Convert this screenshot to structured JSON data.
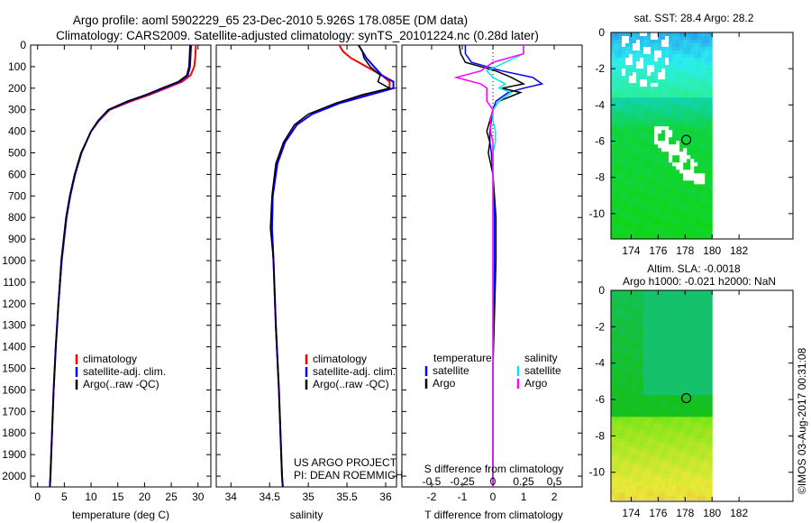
{
  "title": {
    "line1": "Argo profile: aoml 5902229_65 23-Dec-2010 5.926S 178.085E (DM data)",
    "line2": "Climatology: CARS2009. Satellite-adjusted climatology: synTS_20101224.nc (0.28d later)"
  },
  "colors": {
    "clim": "#ff0000",
    "sat": "#0000ff",
    "argo": "#000000",
    "sal_sat": "#00e5ee",
    "sal_argo": "#ff00ff"
  },
  "chart_data": [
    {
      "type": "line",
      "xlabel": "temperature (deg C)",
      "xlim": [
        -1.3,
        32.4
      ],
      "ylim": [
        2050,
        0
      ],
      "xticks": [
        "0",
        "5",
        "10",
        "15",
        "20",
        "25",
        "30"
      ],
      "xtick_values": [
        0,
        5,
        10,
        15,
        20,
        25,
        30
      ],
      "yticks": [
        "0",
        "100",
        "200",
        "300",
        "400",
        "500",
        "600",
        "700",
        "800",
        "900",
        "1000",
        "1100",
        "1200",
        "1300",
        "1400",
        "1500",
        "1600",
        "1700",
        "1800",
        "1900",
        "2000"
      ],
      "legend": [
        "climatology",
        "satellite-adj. clim.",
        "Argo(..raw -QC)"
      ],
      "depth": [
        0,
        50,
        100,
        140,
        170,
        200,
        230,
        260,
        300,
        350,
        400,
        500,
        600,
        700,
        800,
        1000,
        1200,
        1400,
        1600,
        1800,
        2000,
        2050
      ],
      "series": [
        {
          "name": "climatology",
          "values": [
            29.6,
            29.5,
            29.3,
            28.6,
            27,
            24,
            21,
            17.5,
            13.5,
            11.5,
            10,
            8.2,
            7,
            6.1,
            5.4,
            4.5,
            3.9,
            3.4,
            3,
            2.7,
            2.4,
            2.3
          ]
        },
        {
          "name": "satellite-adj. clim.",
          "values": [
            28.7,
            28.6,
            28.5,
            28.1,
            26.5,
            23.5,
            20.5,
            17,
            13.3,
            11.4,
            10,
            8.2,
            7,
            6.1,
            5.4,
            4.5,
            3.9,
            3.4,
            3,
            2.7,
            2.4,
            2.3
          ]
        },
        {
          "name": "Argo(..raw -QC)",
          "values": [
            28.5,
            28.4,
            28.3,
            27.9,
            26.3,
            23.2,
            20.3,
            16.8,
            13.2,
            11.3,
            10,
            8.1,
            6.9,
            6,
            5.3,
            4.4,
            3.9,
            3.4,
            3,
            2.7,
            2.4,
            2.3
          ]
        }
      ]
    },
    {
      "type": "line",
      "xlabel": "salinity",
      "xlim": [
        33.81,
        36.14
      ],
      "ylim": [
        2050,
        0
      ],
      "xticks": [
        "34",
        "34.5",
        "35",
        "35.5",
        "36"
      ],
      "xtick_values": [
        34,
        34.5,
        35,
        35.5,
        36
      ],
      "legend": [
        "climatology",
        "satellite-adj. clim.",
        "Argo(..raw -QC)"
      ],
      "annotation": [
        "US ARGO PROJECT",
        "PI: DEAN ROEMMICH"
      ],
      "depth": [
        0,
        30,
        60,
        100,
        140,
        170,
        200,
        230,
        270,
        320,
        370,
        450,
        550,
        700,
        850,
        1000,
        1300,
        1600,
        2000,
        2050
      ],
      "series": [
        {
          "name": "climatology",
          "values": [
            35.4,
            35.45,
            35.55,
            35.75,
            35.95,
            36.05,
            36.05,
            35.75,
            35.4,
            35.05,
            34.85,
            34.7,
            34.6,
            34.54,
            34.53,
            34.55,
            34.58,
            34.62,
            34.66,
            34.67
          ]
        },
        {
          "name": "satellite-adj. clim.",
          "values": [
            35.65,
            35.7,
            35.75,
            35.85,
            35.95,
            36.1,
            36.1,
            35.8,
            35.4,
            35.05,
            34.85,
            34.7,
            34.6,
            34.54,
            34.53,
            34.55,
            34.58,
            34.62,
            34.66,
            34.67
          ]
        },
        {
          "name": "Argo(..raw -QC)",
          "values": [
            35.65,
            35.7,
            35.72,
            35.8,
            35.93,
            35.9,
            36.05,
            35.7,
            35.35,
            35.0,
            34.82,
            34.68,
            34.58,
            34.53,
            34.51,
            34.55,
            34.58,
            34.62,
            34.66,
            34.67
          ]
        }
      ]
    },
    {
      "type": "line",
      "xlabel": "T difference from climatology",
      "xlabel2": "S difference from climatology",
      "xlim": [
        -2.97,
        2.91
      ],
      "ylim": [
        2050,
        0
      ],
      "xticks": [
        "-2",
        "-1",
        "0",
        "1",
        "2"
      ],
      "xtick_values": [
        -2,
        -1,
        0,
        1,
        2
      ],
      "xticks2": [
        "-0.5",
        "-0.25",
        "0",
        "0.25",
        "0.5"
      ],
      "xtick2_values": [
        -0.5,
        -0.25,
        0,
        0.25,
        0.5
      ],
      "legend_temperature": {
        "title": "temperature",
        "items": [
          "satellite",
          "Argo"
        ]
      },
      "legend_salinity": {
        "title": "salinity",
        "items": [
          "satellite",
          "Argo"
        ]
      },
      "depth": [
        0,
        40,
        80,
        120,
        150,
        180,
        200,
        220,
        260,
        300,
        350,
        400,
        450,
        500,
        600,
        800,
        1000,
        1500,
        2050
      ],
      "series": [
        {
          "name": "temperature satellite",
          "values": [
            -0.9,
            -0.9,
            -0.7,
            0.3,
            1.3,
            1.6,
            1.0,
            0.5,
            0.1,
            0,
            -0.05,
            -0.1,
            -0.1,
            -0.05,
            0,
            0.05,
            0.05,
            0,
            0
          ]
        },
        {
          "name": "temperature Argo",
          "values": [
            -1.1,
            -1.05,
            -0.9,
            0.1,
            0.6,
            1.0,
            0.3,
            0.9,
            0.2,
            0,
            -0.1,
            -0.2,
            -0.1,
            -0.15,
            0,
            0.1,
            0.1,
            0,
            0
          ]
        },
        {
          "name": "salinity satellite",
          "values": [
            0.25,
            0.25,
            0.1,
            -0.05,
            0.0,
            0.1,
            0.05,
            0.15,
            0.05,
            0,
            0,
            0.02,
            0.02,
            0,
            0,
            0,
            0,
            0,
            0
          ]
        },
        {
          "name": "salinity Argo",
          "values": [
            0.25,
            0.25,
            0.0,
            -0.1,
            -0.3,
            -0.1,
            -0.05,
            -0.05,
            -0.05,
            0,
            -0.02,
            -0.02,
            0,
            0,
            0,
            0,
            0,
            0,
            0
          ]
        }
      ]
    },
    {
      "type": "heatmap",
      "title": "sat. SST: 28.4 Argo: 28.2",
      "xlim": [
        172.5,
        186
      ],
      "xticks": [
        "174",
        "176",
        "178",
        "180",
        "182"
      ],
      "xtick_values": [
        174,
        176,
        178,
        180,
        182
      ],
      "ylim": [
        -11.4,
        0
      ],
      "yticks": [
        "0",
        "-2",
        "-4",
        "-6",
        "-8",
        "-10"
      ],
      "ytick_values": [
        0,
        -2,
        -4,
        -6,
        -8,
        -10
      ],
      "marker": {
        "lon": 178.085,
        "lat": -5.926
      }
    },
    {
      "type": "heatmap",
      "title": "Altim. SLA: -0.0018",
      "subtitle": "Argo h1000: -0.021 h2000: NaN",
      "xlim": [
        172.5,
        186
      ],
      "xticks": [
        "174",
        "176",
        "178",
        "180",
        "182"
      ],
      "xtick_values": [
        174,
        176,
        178,
        180,
        182
      ],
      "ylim": [
        -11.6,
        0
      ],
      "yticks": [
        "0",
        "-2",
        "-4",
        "-6",
        "-8",
        "-10"
      ],
      "ytick_values": [
        0,
        -2,
        -4,
        -6,
        -8,
        -10
      ],
      "marker": {
        "lon": 178.085,
        "lat": -5.926
      }
    }
  ],
  "footer": {
    "credit": "©IMOS 03-Aug-2017 00:31:08"
  }
}
